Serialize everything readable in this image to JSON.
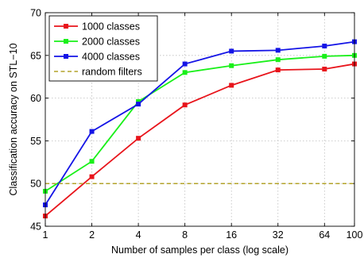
{
  "chart_data": {
    "type": "line",
    "xlabel": "Number of samples per class (log scale)",
    "ylabel": "Classification accuracy on STL−10",
    "x_scale": "log",
    "xlim": [
      1,
      100
    ],
    "ylim": [
      45,
      70
    ],
    "x_ticks": [
      1,
      2,
      4,
      8,
      16,
      32,
      64,
      100
    ],
    "y_ticks": [
      45,
      50,
      55,
      60,
      65,
      70
    ],
    "grid": true,
    "legend_position": "top-left",
    "x": [
      1,
      2,
      4,
      8,
      16,
      32,
      64,
      100
    ],
    "series": [
      {
        "name": "1000 classes",
        "color": "#e8141b",
        "marker": "square",
        "values": [
          46.2,
          50.8,
          55.3,
          59.2,
          61.5,
          63.3,
          63.4,
          64.0
        ]
      },
      {
        "name": "2000 classes",
        "color": "#19f019",
        "marker": "square",
        "values": [
          49.1,
          52.6,
          59.6,
          63.0,
          63.8,
          64.5,
          64.9,
          65.0
        ]
      },
      {
        "name": "4000 classes",
        "color": "#1414e6",
        "marker": "square",
        "values": [
          47.5,
          56.1,
          59.3,
          64.0,
          65.5,
          65.6,
          66.1,
          66.6
        ]
      },
      {
        "name": "random filters",
        "color": "#b3a32a",
        "style": "dashed",
        "values": [
          50.0,
          50.0,
          50.0,
          50.0,
          50.0,
          50.0,
          50.0,
          50.0
        ]
      }
    ]
  }
}
